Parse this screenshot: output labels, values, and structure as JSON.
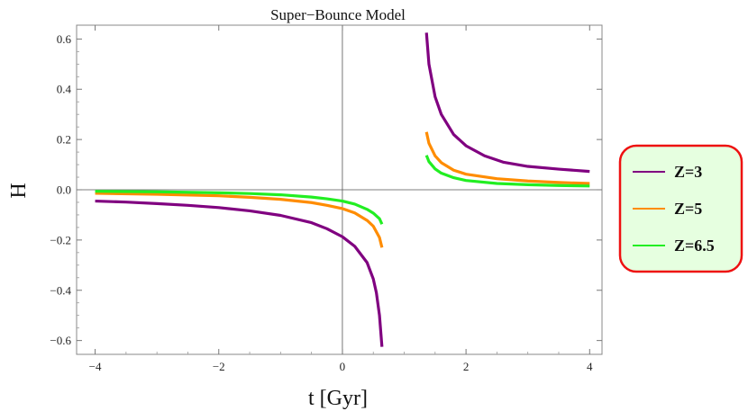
{
  "chart_data": {
    "type": "line",
    "title": "Super−Bounce Model",
    "xlabel": "t [Gyr]",
    "ylabel": "H",
    "xlim": [
      -4.3,
      4.2
    ],
    "ylim": [
      -0.655,
      0.655
    ],
    "x_ticks": [
      -4,
      -2,
      0,
      2,
      4
    ],
    "x_tick_labels": [
      "−4",
      "−2",
      "0",
      "2",
      "4"
    ],
    "y_ticks": [
      -0.6,
      -0.4,
      -0.2,
      0.0,
      0.2,
      0.4,
      0.6
    ],
    "y_tick_labels": [
      "−0.6",
      "−0.4",
      "−0.2",
      "0.0",
      "0.2",
      "0.4",
      "0.6"
    ],
    "legend_position": "right",
    "series": [
      {
        "name": "Z=3",
        "color": "#800080",
        "x": [
          -4.0,
          -3.5,
          -3.0,
          -2.5,
          -2.0,
          -1.5,
          -1.0,
          -0.5,
          -0.25,
          0.0,
          0.2,
          0.4,
          0.5,
          0.55,
          0.6,
          0.64,
          null,
          1.36,
          1.4,
          1.5,
          1.6,
          1.8,
          2.0,
          2.3,
          2.6,
          3.0,
          3.5,
          4.0
        ],
        "y": [
          -0.045,
          -0.049,
          -0.055,
          -0.062,
          -0.071,
          -0.084,
          -0.102,
          -0.131,
          -0.155,
          -0.187,
          -0.225,
          -0.29,
          -0.355,
          -0.41,
          -0.5,
          -0.625,
          null,
          0.625,
          0.5,
          0.37,
          0.3,
          0.22,
          0.175,
          0.135,
          0.11,
          0.093,
          0.082,
          0.073
        ]
      },
      {
        "name": "Z=5",
        "color": "#ff8c00",
        "x": [
          -4.0,
          -3.0,
          -2.0,
          -1.5,
          -1.0,
          -0.5,
          -0.25,
          0.0,
          0.2,
          0.4,
          0.5,
          0.6,
          0.64,
          null,
          1.36,
          1.4,
          1.5,
          1.6,
          1.8,
          2.0,
          2.5,
          3.0,
          3.5,
          4.0
        ],
        "y": [
          -0.014,
          -0.018,
          -0.024,
          -0.03,
          -0.038,
          -0.051,
          -0.062,
          -0.075,
          -0.092,
          -0.122,
          -0.145,
          -0.19,
          -0.23,
          null,
          0.23,
          0.185,
          0.135,
          0.108,
          0.078,
          0.062,
          0.044,
          0.035,
          0.029,
          0.025
        ]
      },
      {
        "name": "Z=6.5",
        "color": "#22ee22",
        "x": [
          -4.0,
          -3.0,
          -2.0,
          -1.5,
          -1.0,
          -0.5,
          -0.25,
          0.0,
          0.2,
          0.4,
          0.5,
          0.6,
          0.64,
          null,
          1.36,
          1.4,
          1.5,
          1.6,
          1.8,
          2.0,
          2.5,
          3.0,
          3.5,
          4.0
        ],
        "y": [
          -0.006,
          -0.008,
          -0.012,
          -0.015,
          -0.02,
          -0.029,
          -0.036,
          -0.045,
          -0.057,
          -0.078,
          -0.093,
          -0.115,
          -0.137,
          null,
          0.137,
          0.112,
          0.083,
          0.066,
          0.048,
          0.037,
          0.025,
          0.02,
          0.017,
          0.015
        ]
      }
    ]
  }
}
